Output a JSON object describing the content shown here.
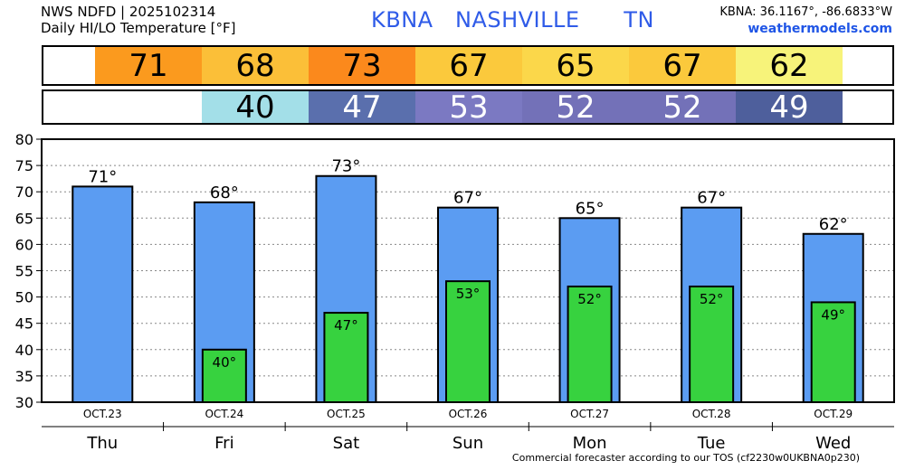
{
  "header": {
    "line1": "NWS NDFD | 2025102314",
    "line2": "Daily HI/LO Temperature [°F]",
    "station_title": "KBNA   NASHVILLE      TN",
    "coords": "KBNA: 36.1167°, -86.6833°W",
    "site": "weathermodels.com"
  },
  "strips": {
    "hi": [
      {
        "text": "71",
        "bg": "#fb9a1e",
        "fg": "#000000"
      },
      {
        "text": "68",
        "bg": "#fbbf38",
        "fg": "#000000"
      },
      {
        "text": "73",
        "bg": "#fb891c",
        "fg": "#000000"
      },
      {
        "text": "67",
        "bg": "#fbc93c",
        "fg": "#000000"
      },
      {
        "text": "65",
        "bg": "#fbd74a",
        "fg": "#000000"
      },
      {
        "text": "67",
        "bg": "#fbc93c",
        "fg": "#000000"
      },
      {
        "text": "62",
        "bg": "#f7f37a",
        "fg": "#000000"
      }
    ],
    "lo": [
      {
        "text": "",
        "bg": "#ffffff",
        "fg": "#000000"
      },
      {
        "text": "40",
        "bg": "#a3dfe8",
        "fg": "#000000"
      },
      {
        "text": "47",
        "bg": "#5a6fad",
        "fg": "#ffffff"
      },
      {
        "text": "53",
        "bg": "#7b79c2",
        "fg": "#ffffff"
      },
      {
        "text": "52",
        "bg": "#7371b8",
        "fg": "#ffffff"
      },
      {
        "text": "52",
        "bg": "#7371b8",
        "fg": "#ffffff"
      },
      {
        "text": "49",
        "bg": "#4e5f9c",
        "fg": "#ffffff"
      }
    ]
  },
  "chart_data": {
    "type": "bar",
    "categories": [
      "Thu",
      "Fri",
      "Sat",
      "Sun",
      "Mon",
      "Tue",
      "Wed"
    ],
    "dates": [
      "OCT.23",
      "OCT.24",
      "OCT.25",
      "OCT.26",
      "OCT.27",
      "OCT.28",
      "OCT.29"
    ],
    "series": [
      {
        "values": [
          71,
          68,
          73,
          67,
          65,
          67,
          62
        ],
        "labels": [
          "71°",
          "68°",
          "73°",
          "67°",
          "65°",
          "67°",
          "62°"
        ],
        "color": "#5b9cf2"
      },
      {
        "values": [
          null,
          40,
          47,
          53,
          52,
          52,
          49
        ],
        "labels": [
          "",
          "40°",
          "47°",
          "53°",
          "52°",
          "52°",
          "49°"
        ],
        "color": "#37d23f"
      }
    ],
    "yticks": [
      30,
      35,
      40,
      45,
      50,
      55,
      60,
      65,
      70,
      75,
      80
    ],
    "ylim": [
      30,
      80
    ],
    "grid": true
  },
  "footer": "Commercial forecaster according to our TOS (cf2230w0UKBNA0p230)"
}
